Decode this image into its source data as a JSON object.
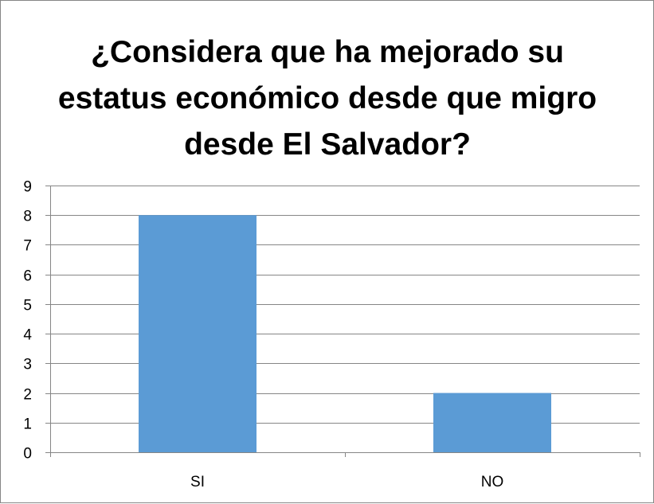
{
  "chart_data": {
    "type": "bar",
    "title": "¿Considera que ha mejorado su estatus económico desde que migro desde  El Salvador?",
    "categories": [
      "SI",
      "NO"
    ],
    "values": [
      8,
      2
    ],
    "ylim": [
      0,
      9
    ],
    "yticks": [
      "0",
      "1",
      "2",
      "3",
      "4",
      "5",
      "6",
      "7",
      "8",
      "9"
    ],
    "grid": true,
    "legend": false,
    "bar_color": "#5b9bd5",
    "gridline_color": "#868686"
  }
}
